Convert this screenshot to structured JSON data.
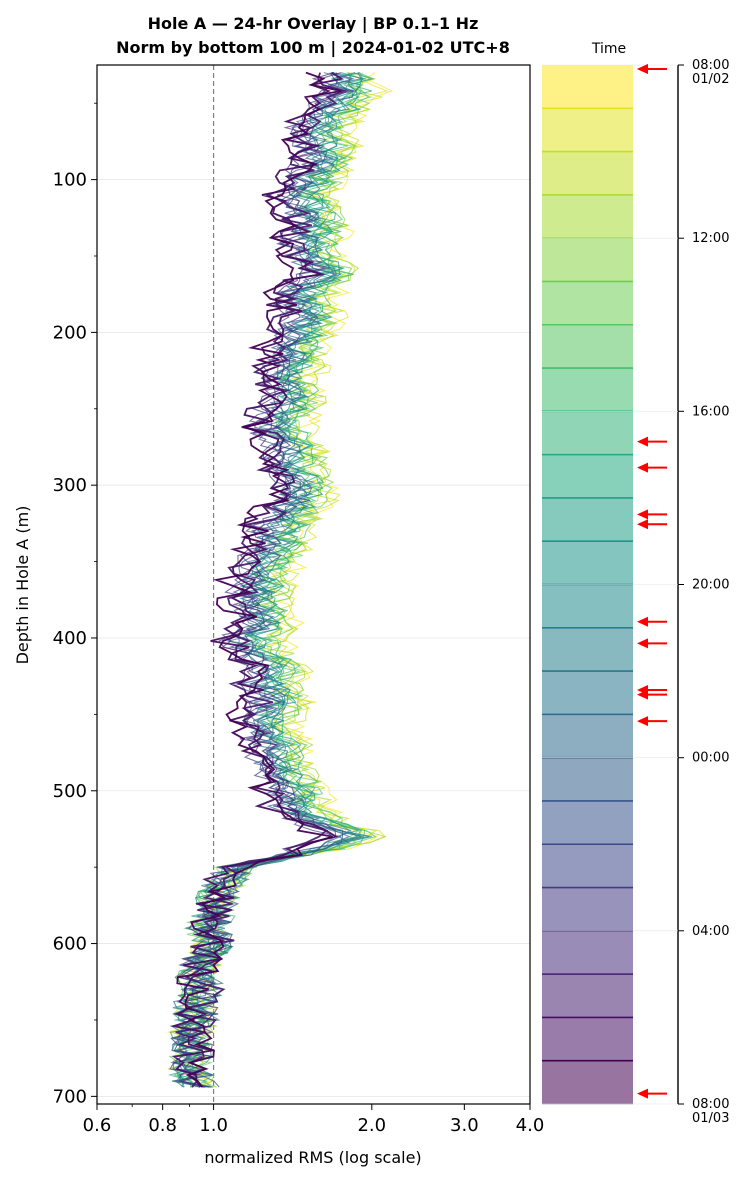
{
  "chart_data": {
    "type": "line",
    "title_line1": "Hole A — 24-hr Overlay  |  BP 0.1–1 Hz",
    "title_line2": "Norm by bottom 100 m  |  2024-01-02 UTC+8",
    "xlabel": "normalized RMS  (log scale)",
    "ylabel": "Depth in Hole A (m)",
    "xscale": "log",
    "xlim": [
      0.6,
      4.0
    ],
    "ylim": [
      705,
      25
    ],
    "y_inverted": true,
    "x_ticks": [
      {
        "value": 0.6,
        "label": "0.6"
      },
      {
        "value": 0.8,
        "label": "0.8"
      },
      {
        "value": 1.0,
        "label": "1.0"
      },
      {
        "value": 2.0,
        "label": "2.0"
      },
      {
        "value": 3.0,
        "label": "3.0"
      },
      {
        "value": 4.0,
        "label": "4.0"
      }
    ],
    "y_ticks": [
      {
        "value": 100,
        "label": "100"
      },
      {
        "value": 200,
        "label": "200"
      },
      {
        "value": 300,
        "label": "300"
      },
      {
        "value": 400,
        "label": "400"
      },
      {
        "value": 500,
        "label": "500"
      },
      {
        "value": 600,
        "label": "600"
      },
      {
        "value": 700,
        "label": "700"
      }
    ],
    "reference_line": {
      "x": 1.0,
      "style": "dashed",
      "color": "#808080"
    },
    "grid": "horizontal",
    "depth_profile": [
      [
        30,
        1.75
      ],
      [
        40,
        1.8
      ],
      [
        50,
        1.7
      ],
      [
        60,
        1.6
      ],
      [
        70,
        1.55
      ],
      [
        80,
        1.6
      ],
      [
        90,
        1.6
      ],
      [
        100,
        1.5
      ],
      [
        110,
        1.45
      ],
      [
        120,
        1.5
      ],
      [
        130,
        1.55
      ],
      [
        140,
        1.5
      ],
      [
        150,
        1.5
      ],
      [
        160,
        1.65
      ],
      [
        170,
        1.5
      ],
      [
        180,
        1.45
      ],
      [
        190,
        1.5
      ],
      [
        200,
        1.45
      ],
      [
        210,
        1.4
      ],
      [
        220,
        1.4
      ],
      [
        230,
        1.35
      ],
      [
        240,
        1.4
      ],
      [
        250,
        1.35
      ],
      [
        260,
        1.3
      ],
      [
        270,
        1.35
      ],
      [
        280,
        1.4
      ],
      [
        290,
        1.4
      ],
      [
        300,
        1.45
      ],
      [
        310,
        1.45
      ],
      [
        320,
        1.35
      ],
      [
        330,
        1.3
      ],
      [
        340,
        1.3
      ],
      [
        350,
        1.25
      ],
      [
        360,
        1.2
      ],
      [
        370,
        1.2
      ],
      [
        380,
        1.2
      ],
      [
        390,
        1.25
      ],
      [
        400,
        1.15
      ],
      [
        410,
        1.2
      ],
      [
        420,
        1.3
      ],
      [
        430,
        1.25
      ],
      [
        440,
        1.3
      ],
      [
        450,
        1.25
      ],
      [
        460,
        1.25
      ],
      [
        470,
        1.3
      ],
      [
        480,
        1.3
      ],
      [
        490,
        1.35
      ],
      [
        500,
        1.4
      ],
      [
        510,
        1.4
      ],
      [
        520,
        1.55
      ],
      [
        530,
        1.8
      ],
      [
        540,
        1.5
      ],
      [
        550,
        1.1
      ],
      [
        560,
        1.05
      ],
      [
        570,
        1.02
      ],
      [
        580,
        1.0
      ],
      [
        590,
        0.97
      ],
      [
        600,
        1.0
      ],
      [
        610,
        0.95
      ],
      [
        620,
        0.93
      ],
      [
        630,
        0.95
      ],
      [
        640,
        0.92
      ],
      [
        650,
        0.93
      ],
      [
        660,
        0.9
      ],
      [
        670,
        0.92
      ],
      [
        680,
        0.9
      ],
      [
        690,
        0.92
      ],
      [
        695,
        0.95
      ]
    ],
    "series_count": 24,
    "series_start_times": [
      "08:00 01/02",
      "09:00",
      "10:00",
      "11:00",
      "12:00",
      "13:00",
      "14:00",
      "15:00",
      "16:00",
      "17:00",
      "18:00",
      "19:00",
      "20:00",
      "21:00",
      "22:00",
      "23:00",
      "00:00",
      "01:00",
      "02:00",
      "03:00",
      "04:00",
      "05:00",
      "06:00",
      "07:00"
    ],
    "colormap": "viridis (yellow = earliest, dark purple = latest)",
    "colorbar": {
      "label": "Time",
      "segments": 24,
      "ticks": [
        {
          "label": "08:00",
          "sublabel": "01/02",
          "frac": 0.0
        },
        {
          "label": "12:00",
          "sublabel": "",
          "frac": 0.1667
        },
        {
          "label": "16:00",
          "sublabel": "",
          "frac": 0.3333
        },
        {
          "label": "20:00",
          "sublabel": "",
          "frac": 0.5
        },
        {
          "label": "00:00",
          "sublabel": "",
          "frac": 0.6667
        },
        {
          "label": "04:00",
          "sublabel": "",
          "frac": 0.8333
        },
        {
          "label": "08:00",
          "sublabel": "01/03",
          "frac": 1.0
        }
      ],
      "arrows": [
        0.0,
        0.0,
        0.3625,
        0.3875,
        0.4325,
        0.442,
        0.5359,
        0.5567,
        0.6015,
        0.606,
        0.6315,
        0.99
      ],
      "arrow_color": "#ff0000"
    }
  }
}
